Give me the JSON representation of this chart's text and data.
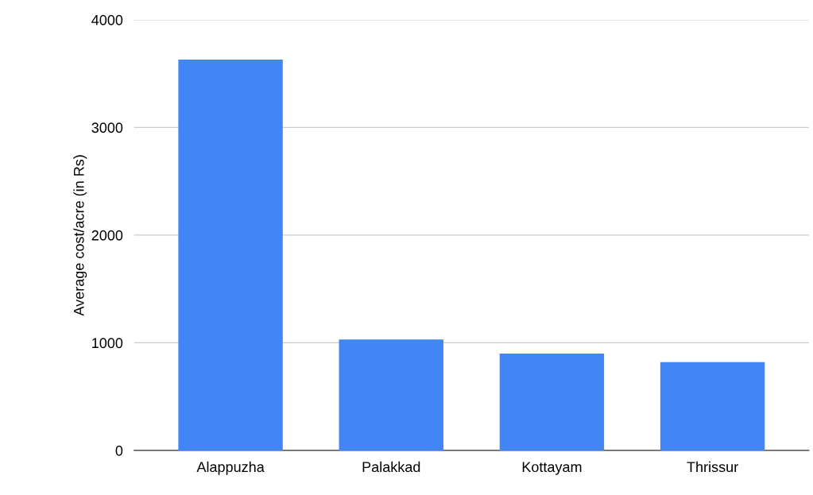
{
  "chart_data": {
    "type": "bar",
    "ylabel": "Average cost/acre (in Rs)",
    "categories": [
      "Alappuzha",
      "Palakkad",
      "Kottayam",
      "Thrissur"
    ],
    "values": [
      3630,
      1030,
      900,
      820
    ],
    "color": "#4285f4",
    "ylim": [
      0,
      4000
    ],
    "yticks": [
      0,
      1000,
      2000,
      3000,
      4000
    ],
    "grid": "y"
  }
}
